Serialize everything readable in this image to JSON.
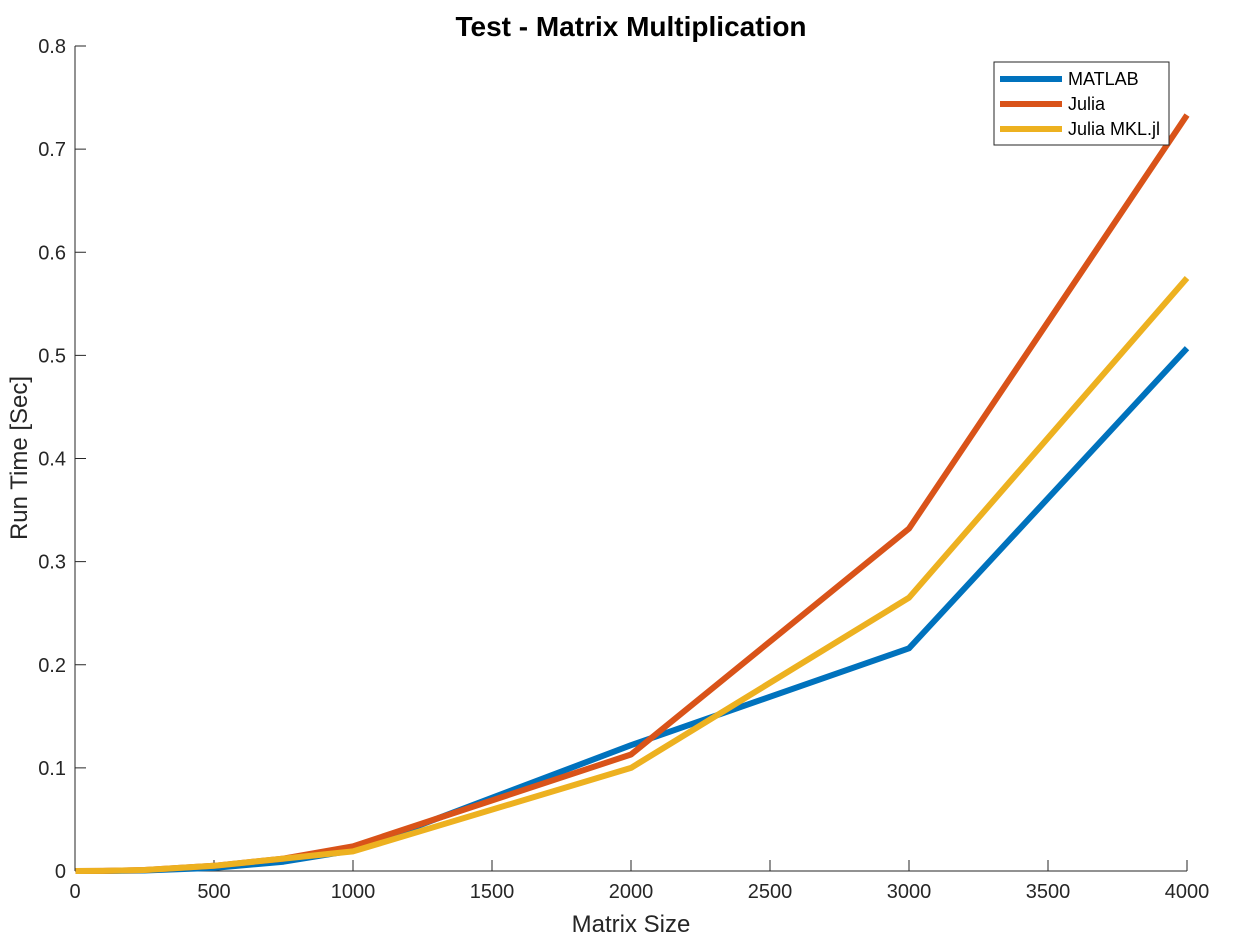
{
  "chart_data": {
    "type": "line",
    "title": "Test - Matrix Multiplication",
    "xlabel": "Matrix Size",
    "ylabel": "Run Time  [Sec]",
    "xlim": [
      0,
      4000
    ],
    "ylim": [
      0,
      0.8
    ],
    "xticks": [
      0,
      500,
      1000,
      1500,
      2000,
      2500,
      3000,
      3500,
      4000
    ],
    "xtick_labels": [
      "0",
      "500",
      "1000",
      "1500",
      "2000",
      "2500",
      "3000",
      "3500",
      "4000"
    ],
    "yticks": [
      0,
      0.1,
      0.2,
      0.3,
      0.4,
      0.5,
      0.6,
      0.7,
      0.8
    ],
    "ytick_labels": [
      "0",
      "0.1",
      "0.2",
      "0.3",
      "0.4",
      "0.5",
      "0.6",
      "0.7",
      "0.8"
    ],
    "grid": false,
    "box": false,
    "legend_position": "top-right",
    "x": [
      2,
      100,
      250,
      500,
      750,
      1000,
      2000,
      3000,
      4000
    ],
    "series": [
      {
        "name": "MATLAB",
        "color": "#0072BD",
        "values": [
          0,
          0,
          0.0005,
          0.003,
          0.009,
          0.02,
          0.122,
          0.216,
          0.507
        ]
      },
      {
        "name": "Julia",
        "color": "#D95319",
        "values": [
          0,
          0.0001,
          0.001,
          0.005,
          0.012,
          0.024,
          0.113,
          0.332,
          0.733
        ]
      },
      {
        "name": "Julia MKL.jl",
        "color": "#EDB120",
        "values": [
          0,
          0.0001,
          0.001,
          0.005,
          0.012,
          0.019,
          0.1,
          0.265,
          0.575
        ]
      }
    ]
  }
}
